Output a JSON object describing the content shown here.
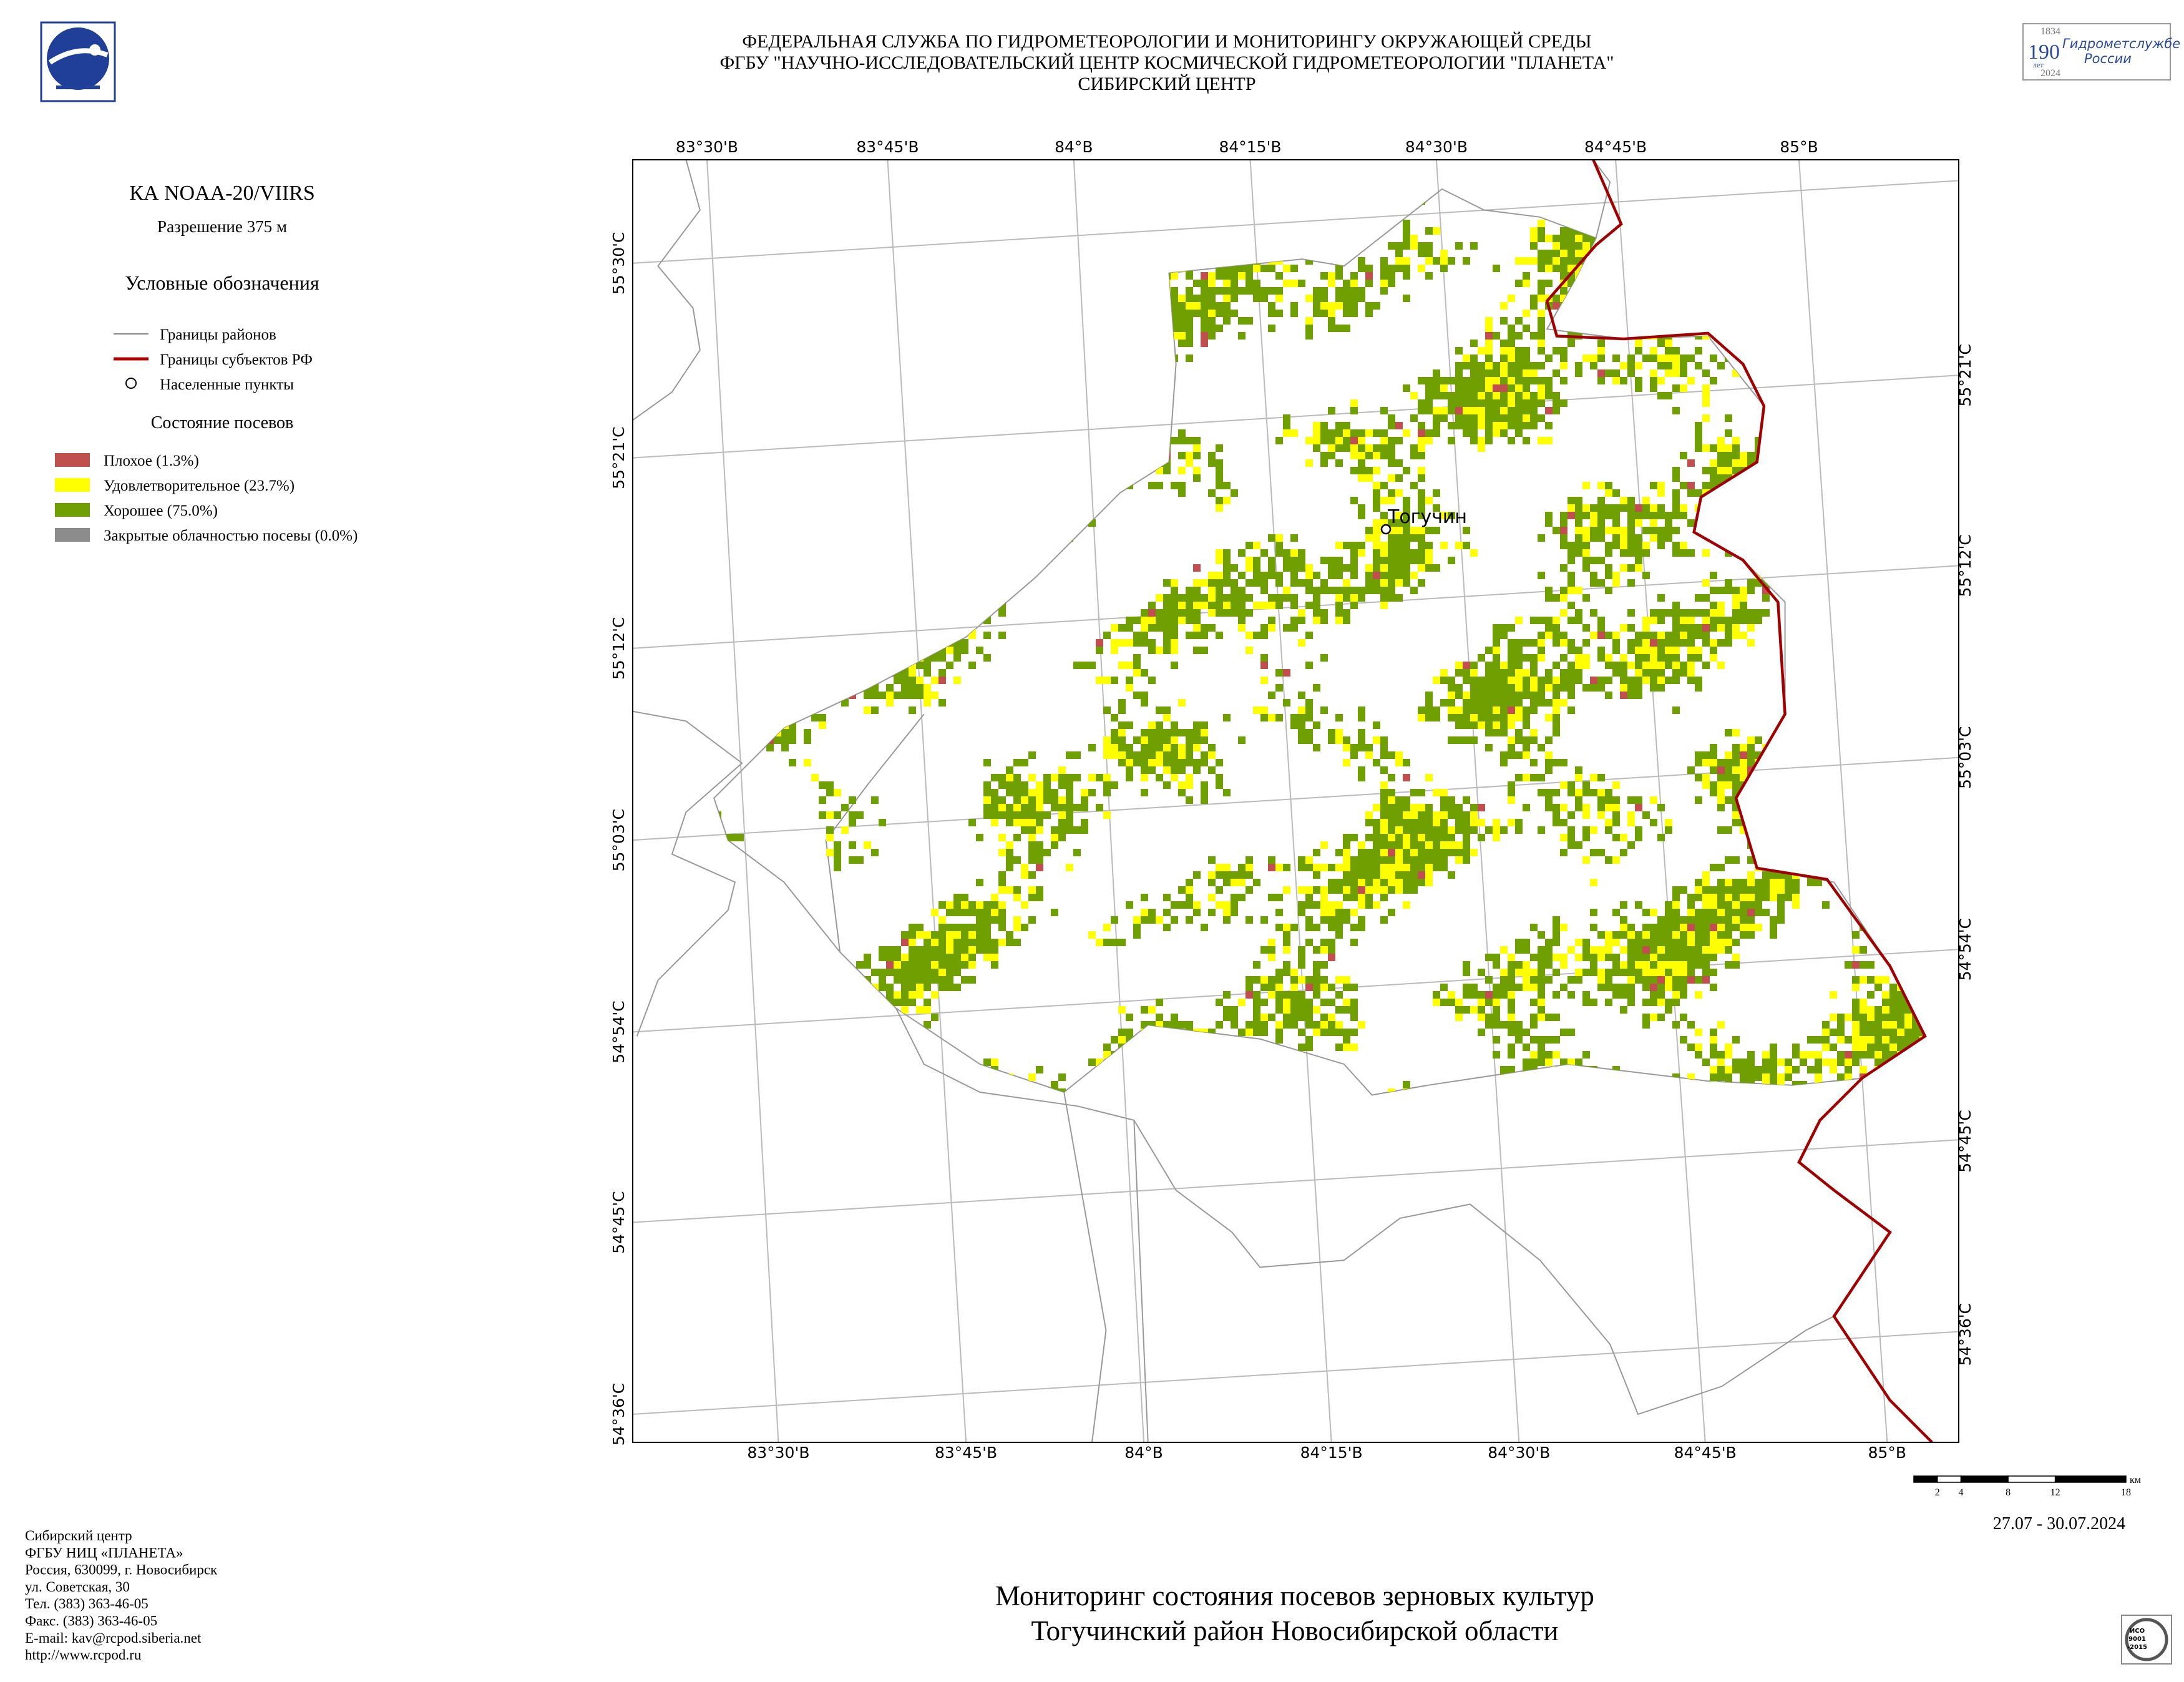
{
  "header": {
    "lines": [
      "ФЕДЕРАЛЬНАЯ СЛУЖБА ПО ГИДРОМЕТЕОРОЛОГИИ И МОНИТОРИНГУ ОКРУЖАЮЩЕЙ СРЕДЫ",
      "ФГБУ \"НАУЧНО-ИССЛЕДОВАТЕЛЬСКИЙ ЦЕНТР КОСМИЧЕСКОЙ ГИДРОМЕТЕОРОЛОГИИ \"ПЛАНЕТА\"",
      "СИБИРСКИЙ ЦЕНТР"
    ]
  },
  "anniversary_logo": {
    "number": "190",
    "years": "лет",
    "start": "1834",
    "end": "2024",
    "text": [
      "Гидрометслужбе",
      "России"
    ]
  },
  "legend": {
    "satellite": "КА NOAA-20/VIIRS",
    "resolution": "Разрешение 375 м",
    "title": "Условные обозначения",
    "boundaries": [
      "Границы районов",
      "Границы субъектов РФ",
      "Населенные пункты"
    ],
    "crop_title": "Состояние посевов",
    "classes": [
      {
        "label": "Плохое (1.3%)",
        "color": "#c0504d"
      },
      {
        "label": "Удовлетворительное (23.7%)",
        "color": "#ffff00"
      },
      {
        "label": "Хорошее (75.0%)",
        "color": "#6f9f00"
      },
      {
        "label": "Закрытые облачностью посевы (0.0%)",
        "color": "#8c8c8c"
      }
    ]
  },
  "map": {
    "top_labels": [
      "83°30'В",
      "83°45'В",
      "84°В",
      "84°15'В",
      "84°30'В",
      "84°45'В",
      "85°В"
    ],
    "bottom_labels": [
      "83°30'В",
      "83°45'В",
      "84°В",
      "84°15'В",
      "84°30'В",
      "84°45'В",
      "85°В"
    ],
    "left_labels": [
      "55°30'С",
      "55°21'С",
      "55°12'С",
      "55°03'С",
      "54°54'С",
      "54°45'С",
      "54°36'С"
    ],
    "right_labels": [
      "55°21'С",
      "55°12'С",
      "55°03'С",
      "54°54'С",
      "54°45'С",
      "54°36'С"
    ],
    "town": "Тогучин"
  },
  "scale_bar": {
    "ticks": [
      2,
      4,
      8,
      12,
      18
    ],
    "unit": "км"
  },
  "date": "27.07 - 30.07.2024",
  "footer": [
    "Сибирский центр",
    "ФГБУ НИЦ «ПЛАНЕТА»",
    "Россия, 630099, г. Новосибирск",
    "ул. Советская, 30",
    "Тел. (383) 363-46-05",
    "Факс. (383) 363-46-05",
    "E-mail: kav@rcpod.siberia.net",
    "http://www.rcpod.ru"
  ],
  "title": [
    "Мониторинг состояния посевов зерновых культур",
    "Тогучинский район Новосибирской области"
  ],
  "iso_logo": [
    "ИСО",
    "9001",
    "-2015"
  ]
}
